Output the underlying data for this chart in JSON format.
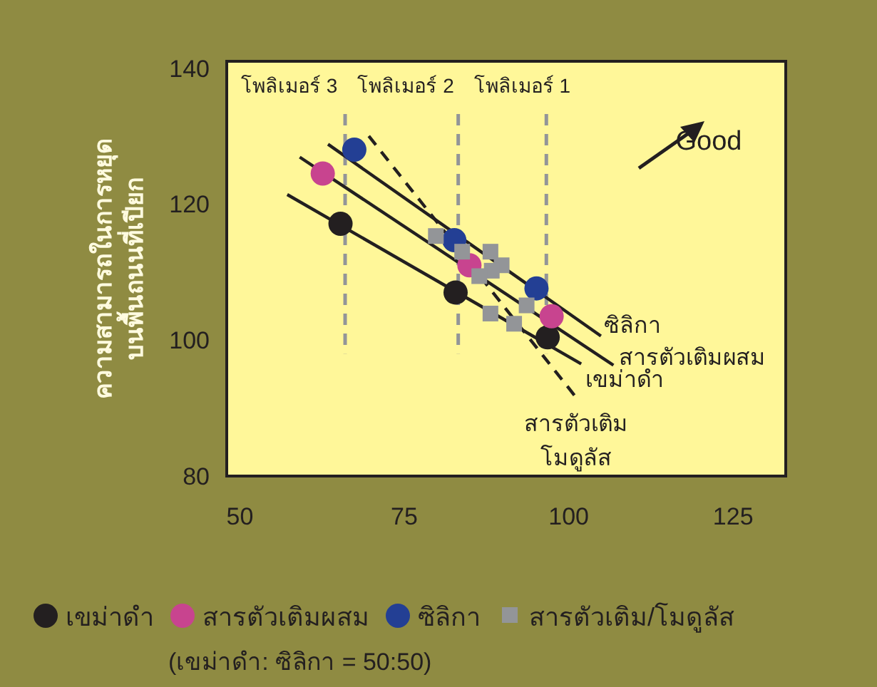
{
  "chart_data": {
    "type": "scatter",
    "ylabel": "ความสามารถในการหยุด\nบนพื้นถนนที่เปียก",
    "xlim": [
      48,
      133
    ],
    "ylim": [
      80,
      141
    ],
    "xticks": [
      50,
      75,
      100,
      125
    ],
    "yticks": [
      80,
      100,
      120,
      140
    ],
    "grid": false,
    "legend": "bottom",
    "series": [
      {
        "name": "เขม่าดำ",
        "type": "scatter",
        "marker": "circle",
        "color": "#231f20",
        "x": [
          65.3,
          82.8,
          96.8
        ],
        "values": [
          117.1,
          107.0,
          100.4
        ]
      },
      {
        "name": "สารตัวเติมผสม",
        "type": "scatter",
        "marker": "circle",
        "color": "#c8448f",
        "x": [
          62.6,
          84.9,
          97.4
        ],
        "values": [
          124.5,
          111.0,
          103.5
        ]
      },
      {
        "name": "ซิลิกา",
        "type": "scatter",
        "marker": "circle",
        "color": "#233f94",
        "x": [
          67.4,
          82.6,
          95.1
        ],
        "values": [
          128.0,
          114.7,
          107.6
        ]
      },
      {
        "name": "สารตัวเติม/โมดูลัส",
        "type": "scatter",
        "marker": "square",
        "color": "#939598",
        "x": [
          79.8,
          83.8,
          88.1,
          89.8,
          88.3,
          86.4,
          93.6,
          88.1,
          91.7
        ],
        "values": [
          115.3,
          113.0,
          113.0,
          111.0,
          110.2,
          109.4,
          105.1,
          103.9,
          102.4
        ]
      },
      {
        "name": "ซิลิกา",
        "type": "line",
        "line_style": "solid",
        "color": "#231f20",
        "x": [
          63.4,
          104.9
        ],
        "values": [
          128.8,
          100.6
        ]
      },
      {
        "name": "สารตัวเติมผสม",
        "type": "line",
        "line_style": "solid",
        "color": "#231f20",
        "x": [
          59.1,
          106.8
        ],
        "values": [
          126.9,
          96.3
        ]
      },
      {
        "name": "เขม่าดำ",
        "type": "line",
        "line_style": "solid",
        "color": "#231f20",
        "x": [
          57.2,
          101.9
        ],
        "values": [
          121.4,
          96.5
        ]
      },
      {
        "name": "สารตัวเติม\nโมดูลัส",
        "type": "line",
        "line_style": "dashed",
        "color": "#231f20",
        "x": [
          69.6,
          101.1
        ],
        "values": [
          130.0,
          91.6
        ]
      }
    ],
    "ref_lines": [
      {
        "axis": "x",
        "value": 66,
        "label": "โพลิเมอร์ 3",
        "color": "#939598",
        "line_style": "dashed"
      },
      {
        "axis": "x",
        "value": 83.2,
        "label": "โพลิเมอร์ 2",
        "color": "#939598",
        "line_style": "dashed"
      },
      {
        "axis": "x",
        "value": 96.6,
        "label": "โพลิเมอร์ 1",
        "color": "#939598",
        "line_style": "dashed"
      }
    ],
    "annotations": [
      "Good",
      "(เขม่าดำ: ซิลิกา = 50:50)"
    ]
  }
}
